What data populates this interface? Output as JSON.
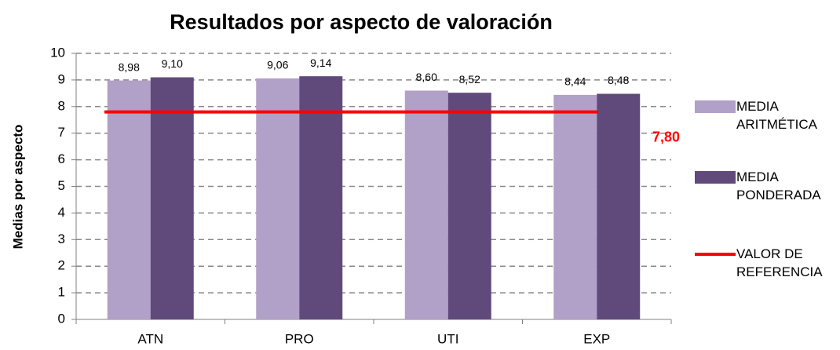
{
  "chart_data": {
    "type": "bar",
    "title": "Resultados por aspecto de valoración",
    "y_label": "Medias por aspecto",
    "categories": [
      "ATN",
      "PRO",
      "UTI",
      "EXP"
    ],
    "series": [
      {
        "name": "MEDIA ARITMÉTICA",
        "color": "#b1a0c7",
        "values": [
          8.98,
          9.06,
          8.6,
          8.44
        ],
        "value_labels": [
          "8,98",
          "9,06",
          "8,60",
          "8,44"
        ]
      },
      {
        "name": "MEDIA PONDERADA",
        "color": "#604a7b",
        "values": [
          9.1,
          9.14,
          8.52,
          8.48
        ],
        "value_labels": [
          "9,10",
          "9,14",
          "8,52",
          "8,48"
        ]
      }
    ],
    "reference": {
      "name": "VALOR DE REFERENCIA",
      "value": 7.8,
      "value_label": "7,80",
      "color": "#ff0000"
    },
    "ylim": [
      0,
      10
    ],
    "yticks": [
      0,
      1,
      2,
      3,
      4,
      5,
      6,
      7,
      8,
      9,
      10
    ],
    "grid": true
  }
}
